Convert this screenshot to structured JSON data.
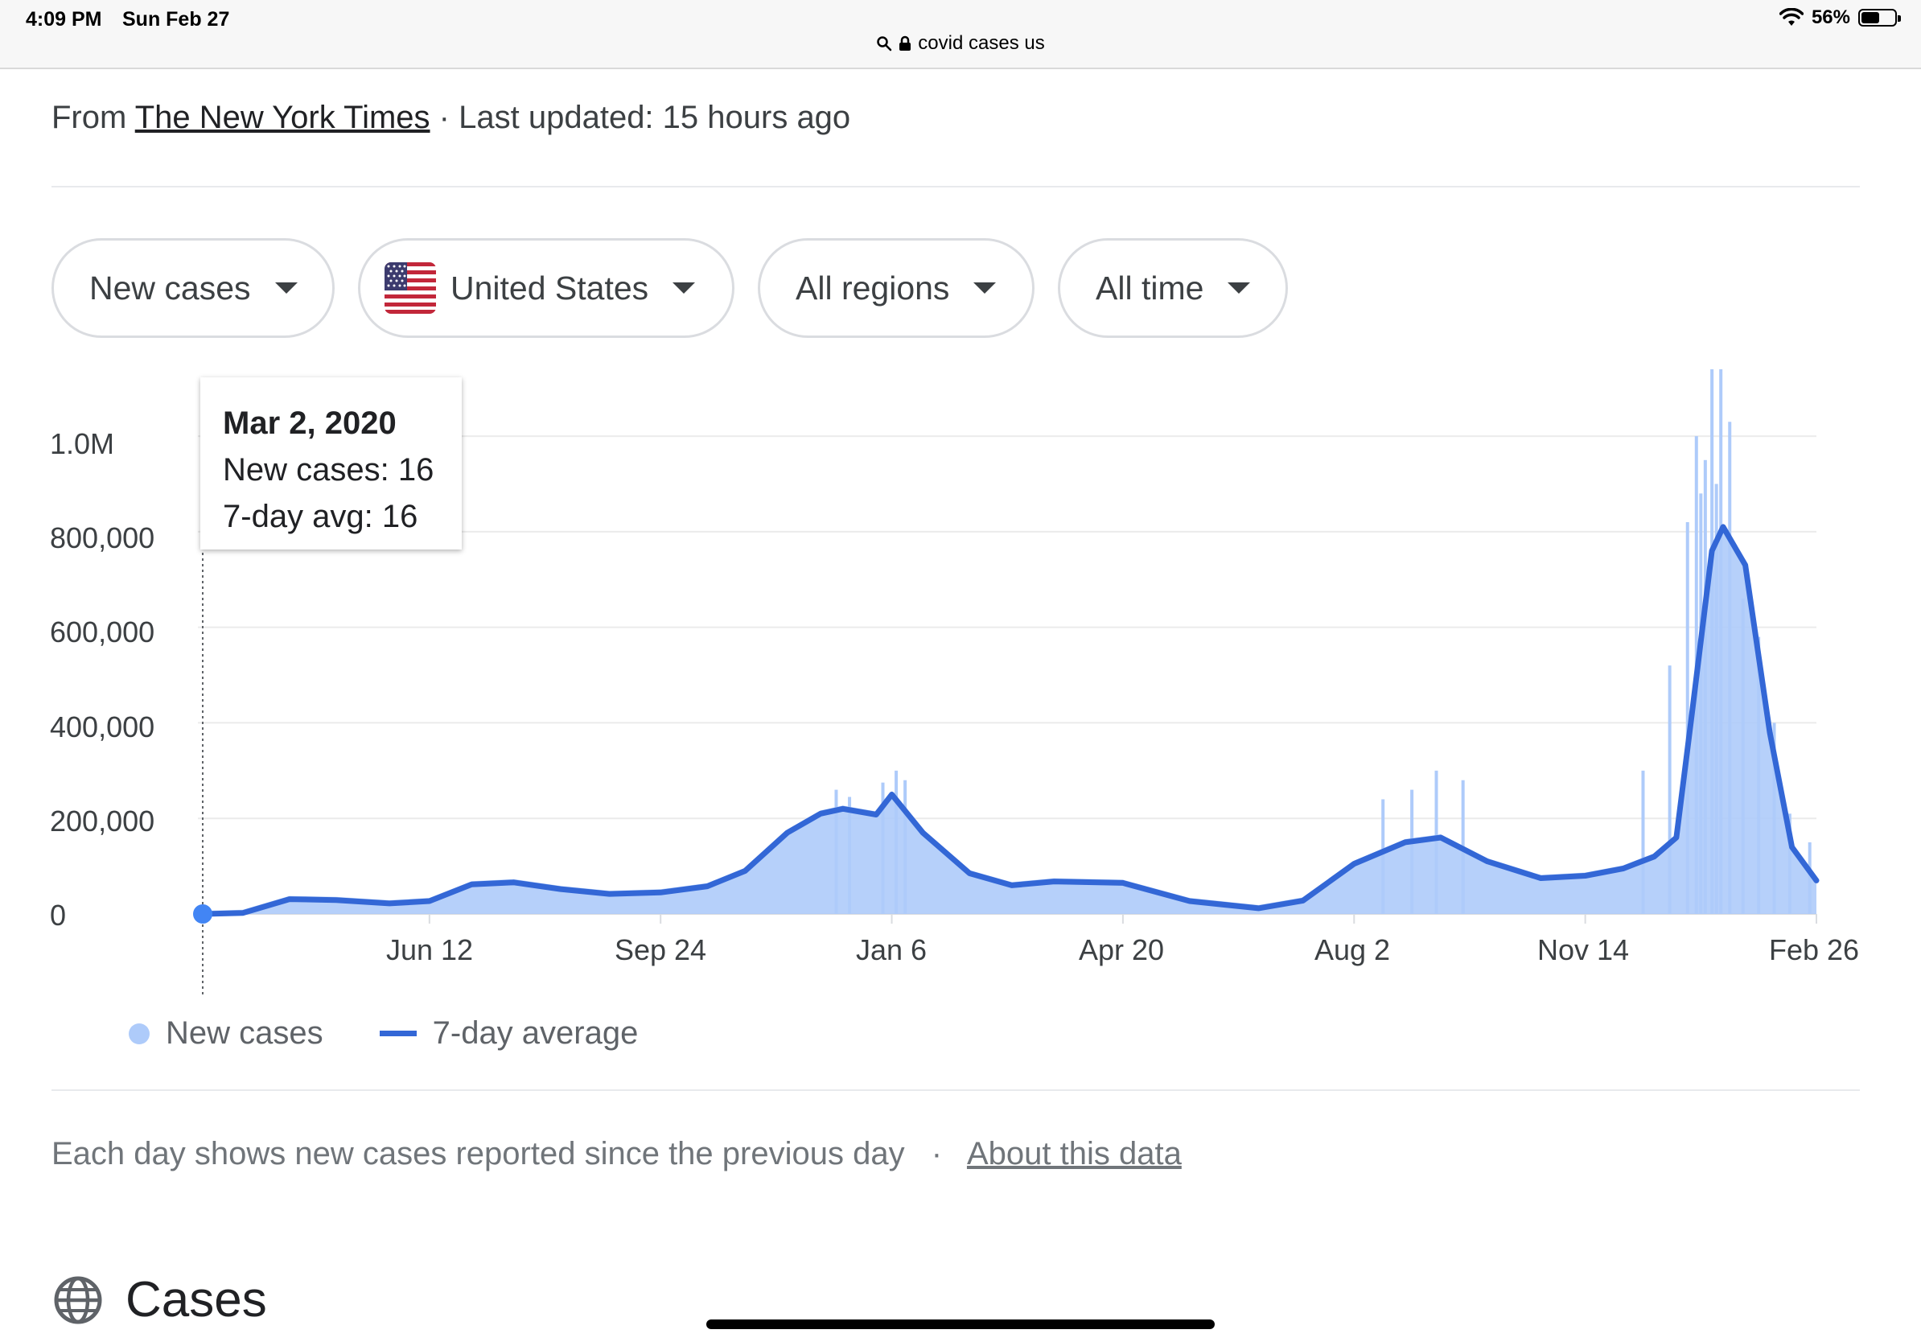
{
  "status_bar": {
    "time": "4:09 PM",
    "date": "Sun Feb 27",
    "battery": "56%",
    "battery_level": 0.56,
    "url": "covid cases us"
  },
  "source": {
    "prefix": "From",
    "publisher": "The New York Times",
    "separator": "·",
    "updated": "Last updated: 15 hours ago"
  },
  "filters": {
    "metric": "New cases",
    "country": "United States",
    "region": "All regions",
    "range": "All time"
  },
  "tooltip": {
    "date": "Mar 2, 2020",
    "new_cases": "New cases: 16",
    "avg": "7-day avg: 16"
  },
  "legend": {
    "bars": "New cases",
    "line": "7-day average"
  },
  "note": {
    "text": "Each day shows new cases reported since the previous day",
    "separator": "·",
    "link": "About this data"
  },
  "section": {
    "title": "Cases"
  },
  "colors": {
    "bars": "#aecbfa",
    "line": "#3367d6",
    "marker": "#4285f4"
  },
  "chart_data": {
    "type": "area",
    "x_tick_labels": [
      "Jun 12",
      "Sep 24",
      "Jan 6",
      "Apr 20",
      "Aug 2",
      "Nov 14",
      "Feb 26"
    ],
    "y_tick_labels": [
      "0",
      "200,000",
      "400,000",
      "600,000",
      "800,000",
      "1.0M"
    ],
    "ylim": [
      0,
      1150000
    ],
    "x": [
      "2020-03-02",
      "2020-03-20",
      "2020-04-10",
      "2020-05-01",
      "2020-05-25",
      "2020-06-12",
      "2020-07-01",
      "2020-07-20",
      "2020-08-10",
      "2020-09-01",
      "2020-09-24",
      "2020-10-15",
      "2020-11-01",
      "2020-11-20",
      "2020-12-05",
      "2020-12-15",
      "2020-12-30",
      "2021-01-06",
      "2021-01-20",
      "2021-02-10",
      "2021-03-01",
      "2021-03-20",
      "2021-04-20",
      "2021-05-20",
      "2021-06-20",
      "2021-07-10",
      "2021-08-02",
      "2021-08-25",
      "2021-09-10",
      "2021-10-01",
      "2021-10-25",
      "2021-11-14",
      "2021-12-01",
      "2021-12-15",
      "2021-12-25",
      "2022-01-01",
      "2022-01-10",
      "2022-01-15",
      "2022-01-25",
      "2022-02-05",
      "2022-02-15",
      "2022-02-26"
    ],
    "series": [
      {
        "name": "7-day average",
        "values": [
          16,
          2000,
          31000,
          29000,
          22000,
          27000,
          62000,
          66000,
          52000,
          42000,
          45000,
          58000,
          90000,
          170000,
          210000,
          220000,
          208000,
          250000,
          170000,
          85000,
          60000,
          68000,
          65000,
          27000,
          12000,
          28000,
          105000,
          150000,
          160000,
          110000,
          75000,
          80000,
          95000,
          120000,
          160000,
          420000,
          760000,
          810000,
          730000,
          380000,
          140000,
          70000
        ]
      }
    ],
    "peak_new_cases": 1140000
  }
}
